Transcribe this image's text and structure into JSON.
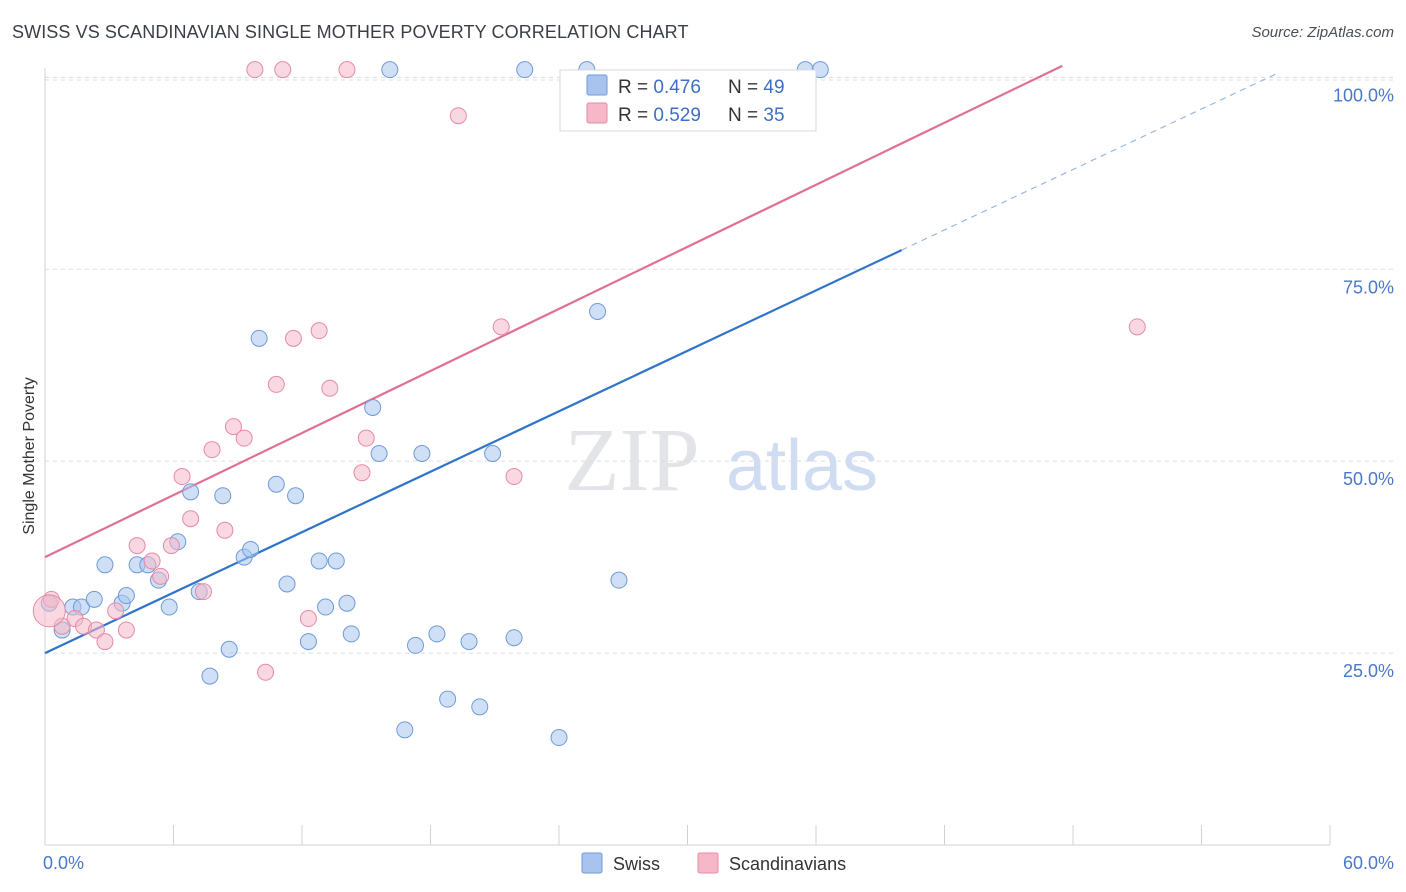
{
  "title": "SWISS VS SCANDINAVIAN SINGLE MOTHER POVERTY CORRELATION CHART",
  "source": "Source: ZipAtlas.com",
  "watermark": {
    "zip": "ZIP",
    "atlas": "atlas"
  },
  "legend": {
    "items": [
      {
        "r_label": "R = ",
        "r_value": "0.476",
        "n_label": "N = ",
        "n_value": "49"
      },
      {
        "r_label": "R = ",
        "r_value": "0.529",
        "n_label": "N = ",
        "n_value": "35"
      }
    ]
  },
  "bottom_legend": [
    "Swiss",
    "Scandinavians"
  ],
  "colors": {
    "swiss_fill": "#a8c4ee",
    "swiss_stroke": "#6f9ad8",
    "swiss_line": "#2f74c8",
    "scand_fill": "#f6b8c8",
    "scand_stroke": "#e68aa6",
    "scand_line": "#e06f95",
    "tick_text": "#4a78c8",
    "grid": "#d8dce2"
  },
  "chart_data": {
    "type": "scatter",
    "title": "SWISS VS SCANDINAVIAN SINGLE MOTHER POVERTY CORRELATION CHART",
    "xlabel": "",
    "ylabel": "Single Mother Poverty",
    "xlim": [
      0,
      60
    ],
    "ylim": [
      0,
      102
    ],
    "x_tick_labels": [
      "0.0%",
      "60.0%"
    ],
    "y_ticks": [
      25,
      50,
      75,
      100
    ],
    "y_tick_labels": [
      "25.0%",
      "50.0%",
      "75.0%",
      "100.0%"
    ],
    "grid": true,
    "legend_position": "top-center",
    "series": [
      {
        "name": "Swiss",
        "r": 0.476,
        "n": 49,
        "trend": {
          "x0": 0,
          "y0": 25.0,
          "x1": 40,
          "y1": 77.5,
          "dash_to_x": 57.5
        },
        "points": [
          [
            0.2,
            31.5
          ],
          [
            0.8,
            28.0
          ],
          [
            1.3,
            31.0
          ],
          [
            1.7,
            31.0
          ],
          [
            2.3,
            32.0
          ],
          [
            2.8,
            36.5
          ],
          [
            3.6,
            31.5
          ],
          [
            3.8,
            32.5
          ],
          [
            4.3,
            36.5
          ],
          [
            4.8,
            36.5
          ],
          [
            5.3,
            34.5
          ],
          [
            5.8,
            31.0
          ],
          [
            6.2,
            39.5
          ],
          [
            6.8,
            46.0
          ],
          [
            7.2,
            33.0
          ],
          [
            7.7,
            22.0
          ],
          [
            8.3,
            45.5
          ],
          [
            8.6,
            25.5
          ],
          [
            9.3,
            37.5
          ],
          [
            9.6,
            38.5
          ],
          [
            10.0,
            66.0
          ],
          [
            10.8,
            47.0
          ],
          [
            11.3,
            34.0
          ],
          [
            11.7,
            45.5
          ],
          [
            12.3,
            26.5
          ],
          [
            12.8,
            37.0
          ],
          [
            13.1,
            31.0
          ],
          [
            13.6,
            37.0
          ],
          [
            14.1,
            31.5
          ],
          [
            14.3,
            27.5
          ],
          [
            15.3,
            57.0
          ],
          [
            15.6,
            51.0
          ],
          [
            16.1,
            101.0
          ],
          [
            16.8,
            15.0
          ],
          [
            17.3,
            26.0
          ],
          [
            17.6,
            51.0
          ],
          [
            18.3,
            27.5
          ],
          [
            18.8,
            19.0
          ],
          [
            19.8,
            26.5
          ],
          [
            20.3,
            18.0
          ],
          [
            20.9,
            51.0
          ],
          [
            21.9,
            27.0
          ],
          [
            22.4,
            101.0
          ],
          [
            24.0,
            14.0
          ],
          [
            25.3,
            101.0
          ],
          [
            25.8,
            69.5
          ],
          [
            26.8,
            34.5
          ],
          [
            35.5,
            101.0
          ],
          [
            36.2,
            101.0
          ]
        ]
      },
      {
        "name": "Scandinavians",
        "r": 0.529,
        "n": 35,
        "trend": {
          "x0": 0,
          "y0": 37.5,
          "x1": 47.5,
          "y1": 101.5
        },
        "points": [
          [
            0.3,
            32.0
          ],
          [
            0.8,
            28.5
          ],
          [
            1.4,
            29.5
          ],
          [
            1.8,
            28.5
          ],
          [
            2.4,
            28.0
          ],
          [
            2.8,
            26.5
          ],
          [
            3.3,
            30.5
          ],
          [
            3.8,
            28.0
          ],
          [
            4.3,
            39.0
          ],
          [
            5.0,
            37.0
          ],
          [
            5.4,
            35.0
          ],
          [
            5.9,
            39.0
          ],
          [
            6.4,
            48.0
          ],
          [
            6.8,
            42.5
          ],
          [
            7.4,
            33.0
          ],
          [
            7.8,
            51.5
          ],
          [
            8.4,
            41.0
          ],
          [
            8.8,
            54.5
          ],
          [
            9.3,
            53.0
          ],
          [
            9.8,
            101.0
          ],
          [
            10.3,
            22.5
          ],
          [
            10.8,
            60.0
          ],
          [
            11.1,
            101.0
          ],
          [
            11.6,
            66.0
          ],
          [
            12.3,
            29.5
          ],
          [
            12.8,
            67.0
          ],
          [
            13.3,
            59.5
          ],
          [
            14.1,
            101.0
          ],
          [
            14.8,
            48.5
          ],
          [
            15.0,
            53.0
          ],
          [
            19.3,
            95.0
          ],
          [
            21.3,
            67.5
          ],
          [
            21.9,
            48.0
          ],
          [
            51.0,
            67.5
          ],
          [
            0.2,
            30.5
          ]
        ]
      }
    ]
  }
}
